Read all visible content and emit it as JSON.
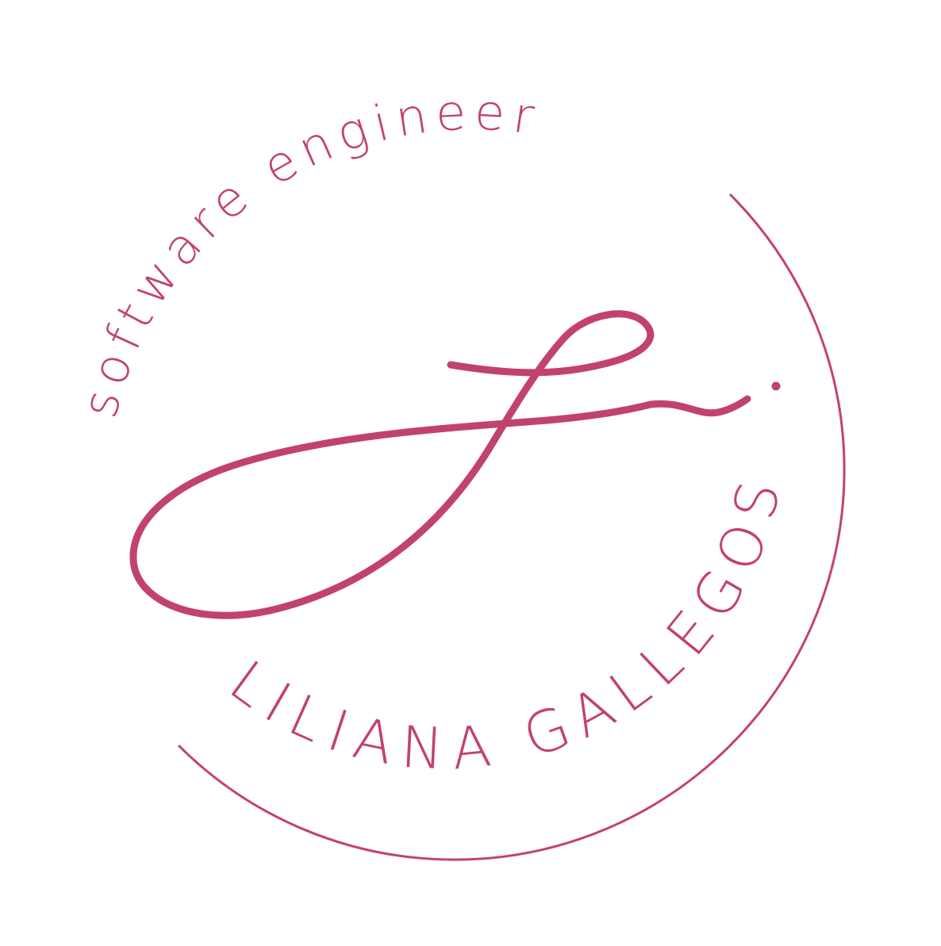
{
  "logo": {
    "accent_color": "#c2426e",
    "background_color": "#ffffff",
    "top_text": "software engineer",
    "bottom_text": "LILIANA GALLEGOS",
    "monogram_icon": "lg-script-monogram-icon",
    "ring_icon": "circle-arc-ring-icon"
  }
}
